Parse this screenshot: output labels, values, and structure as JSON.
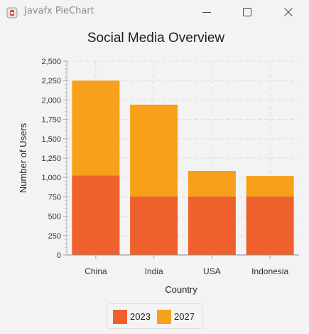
{
  "window": {
    "title": "Javafx PieChart",
    "app_icon": "java-app-icon",
    "buttons": [
      {
        "name": "minimize-button",
        "icon": "minimize-icon"
      },
      {
        "name": "maximize-button",
        "icon": "maximize-icon"
      },
      {
        "name": "close-button",
        "icon": "close-icon"
      }
    ]
  },
  "chart_data": {
    "type": "bar",
    "stacked": true,
    "title": "Social Media Overview",
    "xlabel": "Country",
    "ylabel": "Number of Users",
    "categories": [
      "China",
      "India",
      "USA",
      "Indonesia"
    ],
    "series": [
      {
        "name": "2023",
        "values": [
          1025,
          755,
          755,
          755
        ],
        "color": "#f0602c"
      },
      {
        "name": "2027",
        "values": [
          1225,
          1185,
          330,
          265
        ],
        "color": "#f7a11a"
      }
    ],
    "ylim": [
      0,
      2500
    ],
    "yticks": [
      "0",
      "250",
      "500",
      "750",
      "1,000",
      "1,250",
      "1,500",
      "1,750",
      "2,000",
      "2,250",
      "2,500"
    ],
    "grid": true,
    "legend": "bottom"
  }
}
